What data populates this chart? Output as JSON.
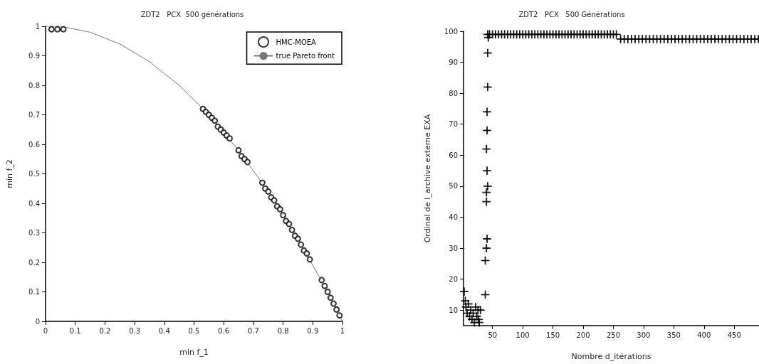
{
  "chart_data": [
    {
      "type": "scatter",
      "title": "ZDT2   PCX  500 générations",
      "xlabel": "min f_1",
      "ylabel": "min f_2",
      "xlim": [
        0,
        1
      ],
      "ylim": [
        0,
        1
      ],
      "xticks": [
        0,
        0.1,
        0.2,
        0.3,
        0.4,
        0.5,
        0.6,
        0.7,
        0.8,
        0.9,
        1
      ],
      "yticks": [
        0,
        0.1,
        0.2,
        0.3,
        0.4,
        0.5,
        0.6,
        0.7,
        0.8,
        0.9,
        1
      ],
      "grid": false,
      "legend": "top right",
      "series": [
        {
          "name": "HMC-MOEA",
          "marker": "circle",
          "color": "#000000",
          "x": [
            0.02,
            0.04,
            0.06,
            0.53,
            0.54,
            0.55,
            0.56,
            0.57,
            0.58,
            0.59,
            0.6,
            0.61,
            0.62,
            0.65,
            0.66,
            0.67,
            0.68,
            0.73,
            0.74,
            0.75,
            0.76,
            0.77,
            0.78,
            0.79,
            0.8,
            0.81,
            0.82,
            0.83,
            0.84,
            0.85,
            0.86,
            0.87,
            0.88,
            0.89,
            0.93,
            0.94,
            0.95,
            0.96,
            0.97,
            0.98,
            0.99
          ],
          "values": [
            0.99,
            0.99,
            0.99,
            0.72,
            0.71,
            0.7,
            0.69,
            0.68,
            0.66,
            0.65,
            0.64,
            0.63,
            0.62,
            0.58,
            0.56,
            0.55,
            0.54,
            0.47,
            0.45,
            0.44,
            0.42,
            0.41,
            0.39,
            0.38,
            0.36,
            0.34,
            0.33,
            0.31,
            0.29,
            0.28,
            0.26,
            0.24,
            0.23,
            0.21,
            0.14,
            0.12,
            0.1,
            0.08,
            0.06,
            0.04,
            0.02
          ]
        },
        {
          "name": "true Pareto front",
          "type": "line",
          "marker": "none",
          "line_style": "solid",
          "color": "#777777",
          "x": [
            0,
            0.05,
            0.1,
            0.15,
            0.2,
            0.25,
            0.3,
            0.35,
            0.4,
            0.45,
            0.5,
            0.55,
            0.6,
            0.65,
            0.7,
            0.75,
            0.8,
            0.85,
            0.9,
            0.95,
            1
          ],
          "values": [
            1,
            1,
            0.99,
            0.98,
            0.96,
            0.94,
            0.91,
            0.88,
            0.84,
            0.8,
            0.75,
            0.7,
            0.64,
            0.58,
            0.51,
            0.44,
            0.36,
            0.28,
            0.19,
            0.1,
            0
          ]
        }
      ]
    },
    {
      "type": "scatter",
      "title": "ZDT2   PCX   500 Générations",
      "xlabel": "Nombre d_itérations",
      "ylabel": "Ordinal de l_archive externe EXA",
      "xlim": [
        2,
        491
      ],
      "ylim": [
        5,
        100
      ],
      "xticks": [
        50,
        100,
        150,
        200,
        250,
        300,
        350,
        400,
        450
      ],
      "yticks": [
        10,
        20,
        30,
        40,
        50,
        60,
        70,
        80,
        90,
        100
      ],
      "grid": false,
      "legend": false,
      "marker": "cross",
      "series": [
        {
          "color": "#000000",
          "x": [
            3,
            5,
            6,
            8,
            10,
            12,
            14,
            16,
            18,
            20,
            22,
            24,
            26,
            27,
            28,
            30,
            38,
            38,
            40,
            41,
            40,
            40,
            42,
            41,
            40,
            41,
            41,
            42,
            42,
            43,
            42,
            45,
            50,
            55,
            60,
            65,
            70,
            75,
            80,
            85,
            90,
            95,
            100,
            105,
            110,
            115,
            120,
            125,
            130,
            135,
            140,
            145,
            150,
            155,
            160,
            165,
            170,
            175,
            180,
            185,
            190,
            195,
            200,
            205,
            210,
            215,
            220,
            225,
            230,
            235,
            240,
            245,
            250,
            255,
            262,
            268,
            274,
            280,
            286,
            292,
            298,
            304,
            310,
            316,
            322,
            328,
            334,
            340,
            346,
            352,
            358,
            364,
            370,
            376,
            382,
            388,
            394,
            400,
            406,
            412,
            418,
            424,
            430,
            436,
            442,
            448,
            454,
            460,
            466,
            472,
            478,
            484,
            490
          ],
          "values": [
            16,
            13,
            11,
            9,
            12,
            8,
            10,
            7,
            9,
            6,
            11,
            8,
            10,
            7,
            6,
            10,
            15,
            26,
            30,
            33,
            45,
            48,
            50,
            55,
            62,
            68,
            74,
            82,
            93,
            98,
            99,
            99,
            99,
            99,
            99,
            99,
            99,
            99,
            99,
            99,
            99,
            99,
            99,
            99,
            99,
            99,
            99,
            99,
            99,
            99,
            99,
            99,
            99,
            99,
            99,
            99,
            99,
            99,
            99,
            99,
            99,
            99,
            99,
            99,
            99,
            99,
            99,
            99,
            99,
            99,
            99,
            99,
            99,
            99,
            97.5,
            97.5,
            97.5,
            97.5,
            97.5,
            97.5,
            97.5,
            97.5,
            97.5,
            97.5,
            97.5,
            97.5,
            97.5,
            97.5,
            97.5,
            97.5,
            97.5,
            97.5,
            97.5,
            97.5,
            97.5,
            97.5,
            97.5,
            97.5,
            97.5,
            97.5,
            97.5,
            97.5,
            97.5,
            97.5,
            97.5,
            97.5,
            97.5,
            97.5,
            97.5,
            97.5,
            97.5,
            97.5,
            97.5
          ]
        }
      ]
    }
  ]
}
